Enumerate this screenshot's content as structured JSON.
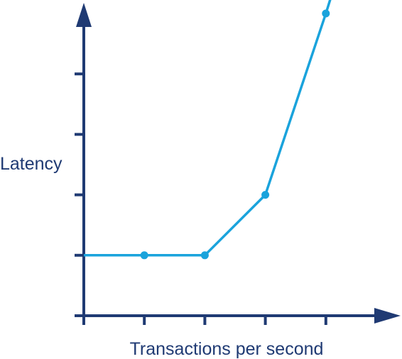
{
  "chart_data": {
    "type": "line",
    "title": "",
    "xlabel": "Transactions per second",
    "ylabel": "Latency",
    "x": [
      1,
      2,
      3,
      4
    ],
    "series": [
      {
        "values": [
          1,
          1,
          2,
          5
        ],
        "color": "#1aa3dc"
      }
    ],
    "line_start": {
      "x": 0,
      "y": 1
    },
    "line_end": {
      "x": 4.25,
      "y": 5.8
    },
    "xlim": [
      0,
      5
    ],
    "ylim": [
      0,
      5
    ],
    "x_ticks": [
      0,
      1,
      2,
      3,
      4
    ],
    "y_ticks": [
      0,
      1,
      2,
      3,
      4
    ],
    "tick_labels_shown": false,
    "grid": false,
    "legend": "none",
    "colors": {
      "axis": "#1f3a73",
      "line": "#1aa3dc",
      "markers": "#1aa3dc"
    }
  }
}
